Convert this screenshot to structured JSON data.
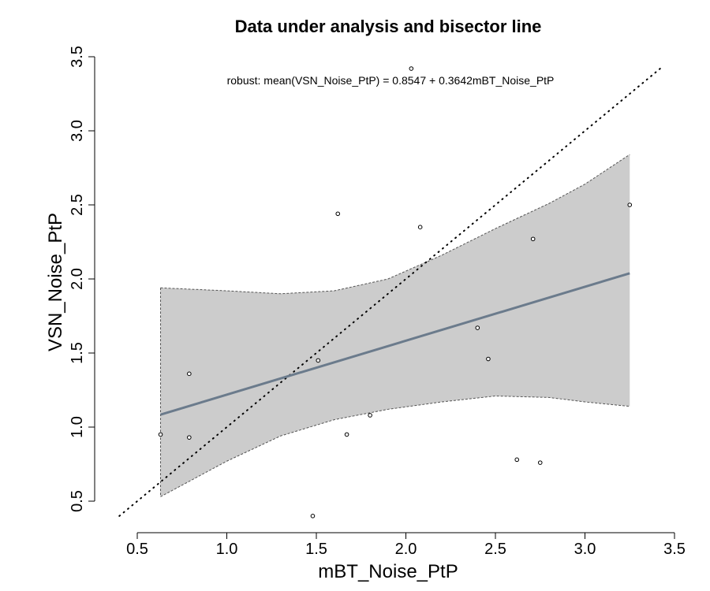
{
  "chart_data": {
    "type": "scatter",
    "title": "Data under analysis and bisector line",
    "xlabel": "mBT_Noise_PtP",
    "ylabel": "VSN_Noise_PtP",
    "xlim": [
      0.5,
      3.5
    ],
    "ylim": [
      0.5,
      3.5
    ],
    "xticks": [
      "0.5",
      "1.0",
      "1.5",
      "2.0",
      "2.5",
      "3.0",
      "3.5"
    ],
    "yticks": [
      "0.5",
      "1.0",
      "1.5",
      "2.0",
      "2.5",
      "3.0",
      "3.5"
    ],
    "grid": false,
    "annotation": "robust: mean(VSN_Noise_PtP) = 0.8547 + 0.3642mBT_Noise_PtP",
    "points": [
      {
        "x": 0.63,
        "y": 0.95
      },
      {
        "x": 0.79,
        "y": 1.36
      },
      {
        "x": 0.79,
        "y": 0.93
      },
      {
        "x": 1.48,
        "y": 0.4
      },
      {
        "x": 1.51,
        "y": 1.45
      },
      {
        "x": 1.62,
        "y": 2.44
      },
      {
        "x": 1.67,
        "y": 0.95
      },
      {
        "x": 1.8,
        "y": 1.08
      },
      {
        "x": 2.03,
        "y": 3.42
      },
      {
        "x": 2.08,
        "y": 2.35
      },
      {
        "x": 2.4,
        "y": 1.67
      },
      {
        "x": 2.46,
        "y": 1.46
      },
      {
        "x": 2.62,
        "y": 0.78
      },
      {
        "x": 2.71,
        "y": 2.27
      },
      {
        "x": 2.75,
        "y": 0.76
      },
      {
        "x": 3.25,
        "y": 2.5
      }
    ],
    "regression": {
      "intercept": 0.8547,
      "slope": 0.3642,
      "x_range": [
        0.63,
        3.25
      ],
      "color": "#6b7b8c"
    },
    "bisector": {
      "x_range": [
        0.4,
        3.43
      ]
    },
    "confidence_band": {
      "color": "#cccccc",
      "x": [
        0.63,
        1.0,
        1.3,
        1.6,
        1.9,
        2.2,
        2.5,
        2.8,
        3.0,
        3.25
      ],
      "lower": [
        0.53,
        0.77,
        0.94,
        1.05,
        1.12,
        1.17,
        1.21,
        1.2,
        1.17,
        1.14
      ],
      "upper": [
        1.94,
        1.92,
        1.9,
        1.92,
        2.0,
        2.16,
        2.34,
        2.51,
        2.64,
        2.84
      ]
    }
  }
}
